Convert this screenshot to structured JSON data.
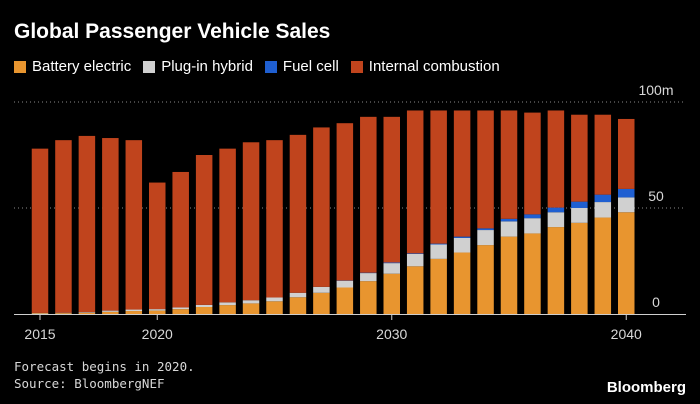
{
  "title": "Global Passenger Vehicle Sales",
  "legend": [
    {
      "label": "Battery electric",
      "color": "#e8952f"
    },
    {
      "label": "Plug-in hybrid",
      "color": "#d0d0d0"
    },
    {
      "label": "Fuel cell",
      "color": "#1f5fd1"
    },
    {
      "label": "Internal combustion",
      "color": "#c0441d"
    }
  ],
  "footnote": {
    "line1": "Forecast begins in 2020.",
    "line2": "Source: BloombergNEF"
  },
  "brand": "Bloomberg",
  "chart_data": {
    "type": "bar",
    "stacked": true,
    "title": "Global Passenger Vehicle Sales",
    "xlabel": "",
    "ylabel": "",
    "ylim": [
      0,
      100
    ],
    "y_ticks": [
      {
        "value": 0,
        "label": "0"
      },
      {
        "value": 50,
        "label": "50"
      },
      {
        "value": 100,
        "label": "100m"
      }
    ],
    "x_ticks": [
      {
        "value": 2015,
        "label": "2015"
      },
      {
        "value": 2020,
        "label": "2020"
      },
      {
        "value": 2030,
        "label": "2030"
      },
      {
        "value": 2040,
        "label": "2040"
      }
    ],
    "grid": true,
    "legend_position": "top-left",
    "categories": [
      2015,
      2016,
      2017,
      2018,
      2019,
      2020,
      2021,
      2022,
      2023,
      2024,
      2025,
      2026,
      2027,
      2028,
      2029,
      2030,
      2031,
      2032,
      2033,
      2034,
      2035,
      2036,
      2037,
      2038,
      2039,
      2040
    ],
    "series": [
      {
        "name": "Battery electric",
        "color": "#e8952f",
        "values": [
          0.3,
          0.4,
          0.6,
          1.0,
          1.4,
          1.6,
          2.3,
          3.3,
          4.2,
          5.0,
          6.0,
          7.9,
          10.0,
          12.5,
          15.5,
          19.0,
          22.5,
          26.0,
          29.0,
          32.5,
          36.5,
          38.0,
          41.0,
          43.0,
          45.5,
          48.0
        ]
      },
      {
        "name": "Plug-in hybrid",
        "color": "#d0d0d0",
        "values": [
          0.2,
          0.2,
          0.3,
          0.6,
          0.7,
          0.7,
          0.8,
          1.0,
          1.3,
          1.5,
          1.8,
          2.1,
          2.8,
          3.2,
          3.8,
          5.0,
          5.8,
          6.8,
          6.9,
          7.1,
          7.2,
          7.2,
          7.0,
          7.0,
          7.3,
          7.0
        ]
      },
      {
        "name": "Fuel cell",
        "color": "#1f5fd1",
        "values": [
          0,
          0,
          0,
          0,
          0,
          0,
          0,
          0,
          0,
          0,
          0,
          0,
          0,
          0.1,
          0.2,
          0.3,
          0.3,
          0.4,
          0.6,
          0.8,
          1.2,
          1.8,
          2.2,
          3.0,
          3.5,
          4.0
        ]
      },
      {
        "name": "Internal combustion",
        "color": "#c0441d",
        "values": [
          77.5,
          81.4,
          83.1,
          81.4,
          79.9,
          59.7,
          63.9,
          70.7,
          72.5,
          74.5,
          74.2,
          74.5,
          75.2,
          74.2,
          73.5,
          68.7,
          67.4,
          62.8,
          59.5,
          55.6,
          51.1,
          48.0,
          45.8,
          41.0,
          37.7,
          33.0
        ]
      }
    ]
  }
}
